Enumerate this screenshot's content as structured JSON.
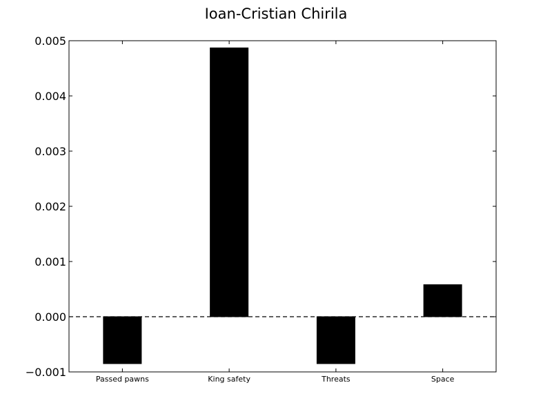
{
  "chart_data": {
    "type": "bar",
    "title": "Ioan-Cristian Chirila",
    "xlabel": "",
    "ylabel": "",
    "categories": [
      "Passed pawns",
      "King safety",
      "Threats",
      "Space"
    ],
    "values": [
      -0.00085,
      0.00487,
      -0.00085,
      0.00058
    ],
    "ylim": [
      -0.001,
      0.005
    ],
    "yticks": [
      -0.001,
      0.0,
      0.001,
      0.002,
      0.003,
      0.004,
      0.005
    ],
    "ytick_labels": [
      "−0.001",
      "0.000",
      "0.001",
      "0.002",
      "0.003",
      "0.004",
      "0.005"
    ],
    "bar_color": "#000000",
    "zero_line": "dashed",
    "grid": false
  }
}
